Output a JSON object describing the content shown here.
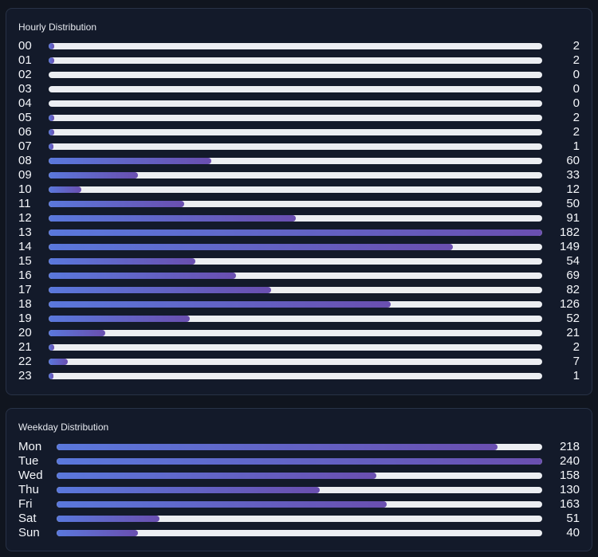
{
  "chart_data": [
    {
      "type": "bar",
      "orientation": "horizontal",
      "title": "Hourly Distribution",
      "categories": [
        "00",
        "01",
        "02",
        "03",
        "04",
        "05",
        "06",
        "07",
        "08",
        "09",
        "10",
        "11",
        "12",
        "13",
        "14",
        "15",
        "16",
        "17",
        "18",
        "19",
        "20",
        "21",
        "22",
        "23"
      ],
      "values": [
        2,
        2,
        0,
        0,
        0,
        2,
        2,
        1,
        60,
        33,
        12,
        50,
        91,
        182,
        149,
        54,
        69,
        82,
        126,
        52,
        21,
        2,
        7,
        1
      ],
      "max": 182
    },
    {
      "type": "bar",
      "orientation": "horizontal",
      "title": "Weekday Distribution",
      "categories": [
        "Mon",
        "Tue",
        "Wed",
        "Thu",
        "Fri",
        "Sat",
        "Sun"
      ],
      "values": [
        218,
        240,
        158,
        130,
        163,
        51,
        40
      ],
      "max": 240
    }
  ],
  "colors": {
    "background": "#10151f",
    "panel": "#131a2a",
    "panel_border": "#283246",
    "track": "#eceef2",
    "bar_start": "#5a78dc",
    "bar_end": "#6a4fb0"
  }
}
